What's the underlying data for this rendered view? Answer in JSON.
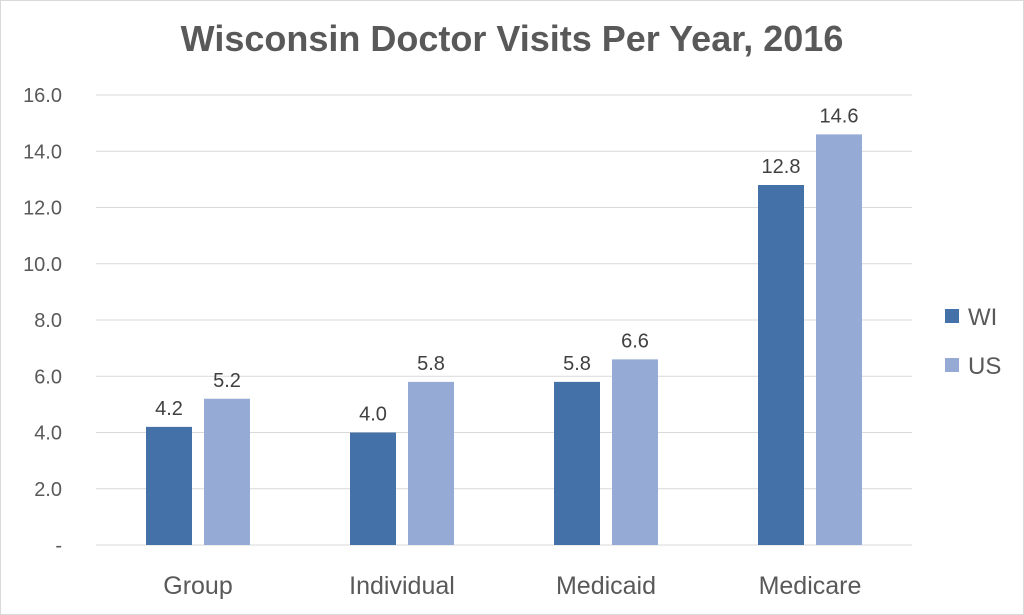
{
  "chart_data": {
    "type": "bar",
    "title": "Wisconsin Doctor Visits Per Year, 2016",
    "categories": [
      "Group",
      "Individual",
      "Medicaid",
      "Medicare"
    ],
    "series": [
      {
        "name": "WI",
        "values": [
          4.2,
          4.0,
          5.8,
          12.8
        ],
        "color": "#4472a8"
      },
      {
        "name": "US",
        "values": [
          5.2,
          5.8,
          6.6,
          14.6
        ],
        "color": "#95abd5"
      }
    ],
    "data_labels": {
      "WI": [
        "4.2",
        "4.0",
        "5.8",
        "12.8"
      ],
      "US": [
        "5.2",
        "5.8",
        "6.6",
        "14.6"
      ]
    },
    "ylim": [
      0,
      16
    ],
    "yticks": [
      0,
      2,
      4,
      6,
      8,
      10,
      12,
      14,
      16
    ],
    "ytick_labels": [
      "-",
      "2.0",
      "4.0",
      "6.0",
      "8.0",
      "10.0",
      "12.0",
      "14.0",
      "16.0"
    ],
    "xlabel": "",
    "ylabel": "",
    "grid": true,
    "legend_position": "right"
  }
}
